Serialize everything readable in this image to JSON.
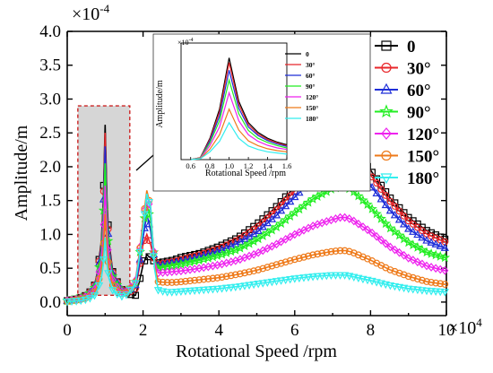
{
  "chart_data": [
    {
      "type": "line",
      "xlabel": "Rotational Speed /rpm",
      "ylabel": "Amplitude/m",
      "x_multiplier": "×10",
      "x_multiplier_exp": "4",
      "y_multiplier": "×10",
      "y_multiplier_exp": "-4",
      "xlim": [
        0,
        10
      ],
      "ylim": [
        -0.2,
        4.0
      ],
      "xticks": [
        0,
        2,
        4,
        6,
        8,
        10
      ],
      "xtick_labels": [
        "0",
        "2",
        "4",
        "6",
        "8",
        "10"
      ],
      "yticks": [
        0.0,
        0.5,
        1.0,
        1.5,
        2.0,
        2.5,
        3.0,
        3.5,
        4.0
      ],
      "ytick_labels": [
        "0.0",
        "0.5",
        "1.0",
        "1.5",
        "2.0",
        "2.5",
        "3.0",
        "3.5",
        "4.0"
      ],
      "legend_position": "top-right",
      "grid": false,
      "highlight_box": {
        "x": [
          0.28,
          1.65
        ],
        "y": [
          0.1,
          2.9
        ]
      },
      "series": [
        {
          "name": "0",
          "color": "#000000",
          "marker": "square",
          "x": [
            0,
            0.3,
            0.5,
            0.7,
            0.8,
            0.9,
            0.95,
            1.0,
            1.05,
            1.1,
            1.2,
            1.4,
            1.6,
            1.8,
            1.9,
            2.0,
            2.1,
            2.2,
            2.3,
            2.4,
            2.6,
            2.8,
            3,
            3.5,
            4,
            4.5,
            5,
            5.5,
            6,
            6.5,
            7,
            7.2,
            7.35,
            7.5,
            8,
            8.5,
            9,
            9.5,
            10
          ],
          "y": [
            0.02,
            0.05,
            0.1,
            0.2,
            0.45,
            0.9,
            1.5,
            2.62,
            1.5,
            0.9,
            0.45,
            0.2,
            0.12,
            0.1,
            0.3,
            0.55,
            0.7,
            0.65,
            0.6,
            0.58,
            0.6,
            0.62,
            0.66,
            0.72,
            0.82,
            0.95,
            1.15,
            1.4,
            1.7,
            2.0,
            2.25,
            2.32,
            2.32,
            2.28,
            1.95,
            1.55,
            1.25,
            1.05,
            0.92
          ]
        },
        {
          "name": "30°",
          "color": "#e8262a",
          "marker": "circle",
          "x": [
            0,
            0.3,
            0.5,
            0.7,
            0.8,
            0.9,
            0.95,
            1.0,
            1.05,
            1.1,
            1.2,
            1.4,
            1.6,
            1.8,
            1.9,
            2.0,
            2.1,
            2.2,
            2.3,
            2.4,
            2.6,
            2.8,
            3,
            3.5,
            4,
            4.5,
            5,
            5.5,
            6,
            6.5,
            7,
            7.2,
            7.35,
            7.5,
            8,
            8.5,
            9,
            9.5,
            10
          ],
          "y": [
            0.02,
            0.05,
            0.1,
            0.2,
            0.44,
            0.85,
            1.42,
            2.5,
            1.42,
            0.85,
            0.44,
            0.2,
            0.13,
            0.2,
            0.5,
            0.85,
            1.0,
            0.85,
            0.6,
            0.56,
            0.58,
            0.6,
            0.63,
            0.7,
            0.79,
            0.92,
            1.1,
            1.35,
            1.64,
            1.94,
            2.18,
            2.25,
            2.25,
            2.2,
            1.88,
            1.5,
            1.2,
            1.0,
            0.88
          ]
        },
        {
          "name": "60°",
          "color": "#1f2fd8",
          "marker": "triangle",
          "x": [
            0,
            0.3,
            0.5,
            0.7,
            0.8,
            0.9,
            0.95,
            1.0,
            1.05,
            1.1,
            1.2,
            1.4,
            1.6,
            1.8,
            1.9,
            2.0,
            2.1,
            2.2,
            2.3,
            2.4,
            2.6,
            2.8,
            3,
            3.5,
            4,
            4.5,
            5,
            5.5,
            6,
            6.5,
            7,
            7.2,
            7.35,
            7.5,
            8,
            8.5,
            9,
            9.5,
            10
          ],
          "y": [
            0.02,
            0.05,
            0.1,
            0.19,
            0.42,
            0.8,
            1.32,
            2.3,
            1.32,
            0.8,
            0.42,
            0.19,
            0.15,
            0.25,
            0.55,
            0.95,
            1.3,
            1.05,
            0.62,
            0.54,
            0.56,
            0.58,
            0.6,
            0.67,
            0.75,
            0.87,
            1.03,
            1.27,
            1.55,
            1.82,
            2.02,
            2.08,
            2.08,
            2.02,
            1.72,
            1.36,
            1.08,
            0.9,
            0.79
          ]
        },
        {
          "name": "90°",
          "color": "#22ee22",
          "marker": "star",
          "x": [
            0,
            0.3,
            0.5,
            0.7,
            0.8,
            0.9,
            0.95,
            1.0,
            1.05,
            1.1,
            1.2,
            1.4,
            1.6,
            1.8,
            1.9,
            2.0,
            2.1,
            2.2,
            2.3,
            2.4,
            2.6,
            2.8,
            3,
            3.5,
            4,
            4.5,
            5,
            5.5,
            6,
            6.5,
            7,
            7.2,
            7.35,
            7.5,
            8,
            8.5,
            9,
            9.5,
            10
          ],
          "y": [
            0.02,
            0.05,
            0.09,
            0.17,
            0.38,
            0.72,
            1.18,
            2.05,
            1.18,
            0.72,
            0.38,
            0.17,
            0.16,
            0.3,
            0.65,
            1.1,
            1.45,
            1.2,
            0.62,
            0.5,
            0.52,
            0.54,
            0.56,
            0.62,
            0.69,
            0.78,
            0.92,
            1.1,
            1.32,
            1.53,
            1.68,
            1.7,
            1.7,
            1.66,
            1.4,
            1.1,
            0.88,
            0.73,
            0.65
          ]
        },
        {
          "name": "120°",
          "color": "#ee22ee",
          "marker": "diamond",
          "x": [
            0,
            0.3,
            0.5,
            0.7,
            0.8,
            0.9,
            0.95,
            1.0,
            1.05,
            1.1,
            1.2,
            1.4,
            1.6,
            1.8,
            1.9,
            2.0,
            2.1,
            2.2,
            2.3,
            2.4,
            2.6,
            2.8,
            3,
            3.5,
            4,
            4.5,
            5,
            5.5,
            6,
            6.5,
            7,
            7.2,
            7.35,
            7.5,
            8,
            8.5,
            9,
            9.5,
            10
          ],
          "y": [
            0.02,
            0.04,
            0.08,
            0.15,
            0.33,
            0.62,
            1.0,
            1.72,
            1.0,
            0.62,
            0.33,
            0.15,
            0.16,
            0.32,
            0.72,
            1.2,
            1.6,
            1.35,
            0.6,
            0.43,
            0.44,
            0.45,
            0.46,
            0.5,
            0.55,
            0.62,
            0.72,
            0.85,
            1.0,
            1.13,
            1.22,
            1.25,
            1.25,
            1.22,
            1.04,
            0.82,
            0.65,
            0.53,
            0.46
          ]
        },
        {
          "name": "150°",
          "color": "#ee7a1a",
          "marker": "circle",
          "x": [
            0,
            0.3,
            0.5,
            0.7,
            0.8,
            0.9,
            0.95,
            1.0,
            1.05,
            1.1,
            1.2,
            1.4,
            1.6,
            1.8,
            1.9,
            2.0,
            2.1,
            2.2,
            2.3,
            2.4,
            2.6,
            2.8,
            3,
            3.5,
            4,
            4.5,
            5,
            5.5,
            6,
            6.5,
            7,
            7.2,
            7.35,
            7.5,
            8,
            8.5,
            9,
            9.5,
            10
          ],
          "y": [
            0.01,
            0.03,
            0.06,
            0.12,
            0.25,
            0.48,
            0.76,
            1.3,
            0.76,
            0.48,
            0.25,
            0.12,
            0.14,
            0.3,
            0.7,
            1.2,
            1.65,
            1.4,
            0.55,
            0.3,
            0.29,
            0.29,
            0.3,
            0.33,
            0.36,
            0.41,
            0.47,
            0.55,
            0.63,
            0.7,
            0.75,
            0.76,
            0.76,
            0.74,
            0.62,
            0.48,
            0.38,
            0.3,
            0.26
          ]
        },
        {
          "name": "180°",
          "color": "#33eeee",
          "marker": "down-triangle",
          "x": [
            0,
            0.3,
            0.5,
            0.7,
            0.8,
            0.9,
            0.95,
            1.0,
            1.05,
            1.1,
            1.2,
            1.4,
            1.6,
            1.8,
            1.9,
            2.0,
            2.1,
            2.2,
            2.3,
            2.4,
            2.6,
            2.8,
            3,
            3.5,
            4,
            4.5,
            5,
            5.5,
            6,
            6.5,
            7,
            7.2,
            7.35,
            7.5,
            8,
            8.5,
            9,
            9.5,
            10
          ],
          "y": [
            0.01,
            0.02,
            0.04,
            0.08,
            0.18,
            0.35,
            0.55,
            0.95,
            0.55,
            0.35,
            0.18,
            0.08,
            0.12,
            0.28,
            0.65,
            1.1,
            1.6,
            1.4,
            0.5,
            0.18,
            0.15,
            0.15,
            0.16,
            0.18,
            0.2,
            0.23,
            0.27,
            0.31,
            0.35,
            0.38,
            0.4,
            0.4,
            0.4,
            0.38,
            0.32,
            0.25,
            0.2,
            0.17,
            0.15
          ]
        }
      ]
    },
    {
      "type": "line",
      "xlabel": "Rotational Speed /rpm",
      "ylabel": "Amplitude/m",
      "y_multiplier": "×10",
      "y_multiplier_exp": "-4",
      "xlim": [
        0.5,
        1.6
      ],
      "ylim": [
        0,
        3.0
      ],
      "xticks": [
        0.6,
        0.8,
        1.0,
        1.2,
        1.4,
        1.6
      ],
      "xtick_labels": [
        "0.6",
        "0.8",
        "1.0",
        "1.2",
        "1.4",
        "1.6"
      ],
      "yticks": [],
      "legend_position": "top-right",
      "series": [
        {
          "name": "0",
          "color": "#000000",
          "x": [
            0.6,
            0.7,
            0.8,
            0.9,
            1.0,
            1.1,
            1.2,
            1.3,
            1.4,
            1.5,
            1.6
          ],
          "y": [
            0.0,
            0.05,
            0.55,
            1.3,
            2.62,
            1.5,
            0.95,
            0.7,
            0.55,
            0.45,
            0.38
          ]
        },
        {
          "name": "30°",
          "color": "#e8262a",
          "x": [
            0.6,
            0.7,
            0.8,
            0.9,
            1.0,
            1.1,
            1.2,
            1.3,
            1.4,
            1.5,
            1.6
          ],
          "y": [
            0.0,
            0.05,
            0.52,
            1.22,
            2.5,
            1.42,
            0.9,
            0.66,
            0.52,
            0.43,
            0.36
          ]
        },
        {
          "name": "60°",
          "color": "#1f2fd8",
          "x": [
            0.6,
            0.7,
            0.8,
            0.9,
            1.0,
            1.1,
            1.2,
            1.3,
            1.4,
            1.5,
            1.6
          ],
          "y": [
            0.0,
            0.04,
            0.48,
            1.12,
            2.3,
            1.32,
            0.84,
            0.62,
            0.49,
            0.4,
            0.34
          ]
        },
        {
          "name": "90°",
          "color": "#22ee22",
          "x": [
            0.6,
            0.7,
            0.8,
            0.9,
            1.0,
            1.1,
            1.2,
            1.3,
            1.4,
            1.5,
            1.6
          ],
          "y": [
            0.0,
            0.04,
            0.43,
            1.0,
            2.05,
            1.18,
            0.75,
            0.55,
            0.44,
            0.36,
            0.3
          ]
        },
        {
          "name": "120°",
          "color": "#ee22ee",
          "x": [
            0.6,
            0.7,
            0.8,
            0.9,
            1.0,
            1.1,
            1.2,
            1.3,
            1.4,
            1.5,
            1.6
          ],
          "y": [
            0.0,
            0.03,
            0.36,
            0.84,
            1.72,
            1.0,
            0.64,
            0.47,
            0.37,
            0.3,
            0.26
          ]
        },
        {
          "name": "150°",
          "color": "#ee7a1a",
          "x": [
            0.6,
            0.7,
            0.8,
            0.9,
            1.0,
            1.1,
            1.2,
            1.3,
            1.4,
            1.5,
            1.6
          ],
          "y": [
            0.0,
            0.02,
            0.27,
            0.64,
            1.3,
            0.76,
            0.48,
            0.36,
            0.28,
            0.23,
            0.2
          ]
        },
        {
          "name": "180°",
          "color": "#33eeee",
          "x": [
            0.6,
            0.7,
            0.8,
            0.9,
            1.0,
            1.1,
            1.2,
            1.3,
            1.4,
            1.5,
            1.6
          ],
          "y": [
            0.0,
            0.02,
            0.2,
            0.47,
            0.95,
            0.55,
            0.35,
            0.26,
            0.2,
            0.17,
            0.14
          ]
        }
      ]
    }
  ]
}
